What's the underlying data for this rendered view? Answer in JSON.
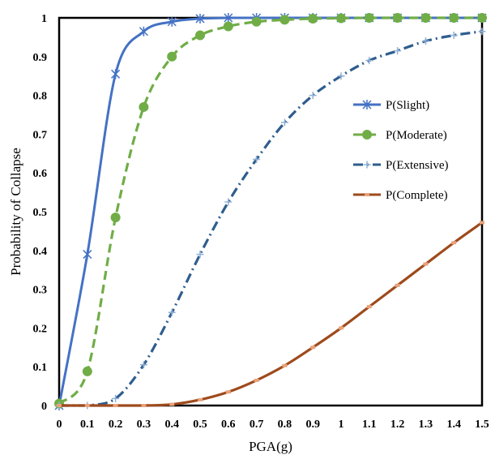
{
  "chart_data": {
    "type": "line",
    "title": "",
    "xlabel": "PGA(g)",
    "ylabel": "Probability of Collapse",
    "xlim": [
      0,
      1.5
    ],
    "ylim": [
      0,
      1
    ],
    "xticks": [
      "0",
      "0.1",
      "0.2",
      "0.3",
      "0.4",
      "0.5",
      "0.6",
      "0.7",
      "0.8",
      "0.9",
      "1",
      "1.1",
      "1.2",
      "1.3",
      "1.4",
      "1.5"
    ],
    "yticks": [
      "0",
      "0.1",
      "0.2",
      "0.3",
      "0.4",
      "0.5",
      "0.6",
      "0.7",
      "0.8",
      "0.9",
      "1"
    ],
    "grid": false,
    "legend_position": "right",
    "x": [
      0,
      0.1,
      0.2,
      0.3,
      0.4,
      0.5,
      0.6,
      0.7,
      0.8,
      0.9,
      1.0,
      1.1,
      1.2,
      1.3,
      1.4,
      1.5
    ],
    "series": [
      {
        "name": "P(Slight)",
        "color": "#4472c4",
        "marker": "asterisk",
        "line_style": "solid",
        "values": [
          0.0,
          0.39,
          0.855,
          0.965,
          0.99,
          0.998,
          1.0,
          1.0,
          1.0,
          1.0,
          1.0,
          1.0,
          1.0,
          1.0,
          1.0,
          1.0
        ]
      },
      {
        "name": "P(Moderate)",
        "color": "#70ad47",
        "marker": "circle",
        "line_style": "dash",
        "values": [
          0.005,
          0.088,
          0.485,
          0.77,
          0.9,
          0.955,
          0.978,
          0.99,
          0.995,
          0.998,
          0.999,
          1.0,
          1.0,
          1.0,
          1.0,
          1.0
        ]
      },
      {
        "name": "P(Extensive)",
        "color": "#2e5d8e",
        "marker": "plus",
        "line_style": "dash-dot",
        "values": [
          0.0,
          0.0,
          0.018,
          0.105,
          0.24,
          0.39,
          0.525,
          0.635,
          0.73,
          0.8,
          0.85,
          0.89,
          0.915,
          0.94,
          0.955,
          0.965
        ]
      },
      {
        "name": "P(Complete)",
        "color": "#9e4a1c",
        "marker": "dash",
        "line_style": "solid",
        "values": [
          0.0,
          0.0,
          0.0,
          0.0,
          0.003,
          0.015,
          0.035,
          0.065,
          0.103,
          0.15,
          0.2,
          0.255,
          0.31,
          0.365,
          0.42,
          0.472
        ]
      }
    ]
  }
}
